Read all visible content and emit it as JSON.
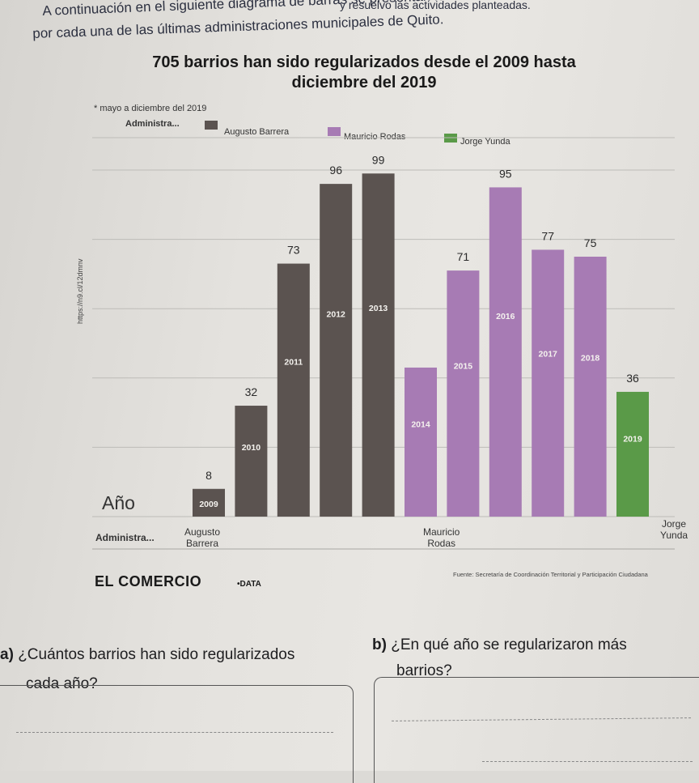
{
  "intro": {
    "top_fragment": "y resuelvo las actividades planteadas.",
    "line1": "A continuación en el siguiente diagrama de barras se presentan los barrios regularizados",
    "line2": "por cada una de las últimas administraciones municipales de Quito."
  },
  "header": {
    "title_line1": "705 barrios han sido regularizados desde el 2009 hasta",
    "title_line2": "diciembre del 2019",
    "subtitle": "* mayo a diciembre del 2019"
  },
  "legend": {
    "label": "Administra...",
    "items": [
      {
        "name": "Augusto Barrera",
        "color": "#5b5350"
      },
      {
        "name": "Mauricio Rodas",
        "color": "#a77bb4"
      },
      {
        "name": "Jorge Yunda",
        "color": "#5a9a48"
      }
    ]
  },
  "chart_data": {
    "type": "bar",
    "title": "705 barrios han sido regularizados desde el 2009 hasta diciembre del 2019",
    "subtitle": "* mayo a diciembre del 2019",
    "xlabel": "Año",
    "ylabel": "",
    "ylim": [
      0,
      100
    ],
    "grid": true,
    "legend_position": "top",
    "categories": [
      "2009",
      "2010",
      "2011",
      "2012",
      "2013",
      "2014",
      "2015",
      "2016",
      "2017",
      "2018",
      "2019"
    ],
    "values": [
      8,
      32,
      73,
      96,
      99,
      43,
      71,
      95,
      77,
      75,
      36
    ],
    "administrations": [
      "Augusto Barrera",
      "Augusto Barrera",
      "Augusto Barrera",
      "Augusto Barrera",
      "Augusto Barrera",
      "Mauricio Rodas",
      "Mauricio Rodas",
      "Mauricio Rodas",
      "Mauricio Rodas",
      "Mauricio Rodas",
      "Jorge Yunda"
    ],
    "value_labels": [
      "8",
      "32",
      "73",
      "96",
      "99",
      "",
      "71",
      "95",
      "77",
      "75",
      "36"
    ],
    "groups": [
      {
        "name": "Augusto Barrera",
        "line1": "Augusto",
        "line2": "Barrera"
      },
      {
        "name": "Mauricio Rodas",
        "line1": "Mauricio",
        "line2": "Rodas"
      },
      {
        "name": "Jorge Yunda",
        "line1": "Jorge",
        "line2": "Yunda"
      }
    ],
    "axis_labels": {
      "year": "Año",
      "admin": "Administra..."
    }
  },
  "footer": {
    "url": "https://n9.cl/12dmnv",
    "brand": "EL COMERCIO",
    "brand_sub": "•DATA",
    "source": "Fuente: Secretaría de Coordinación Territorial y Participación Ciudadana"
  },
  "questions": {
    "a_marker": "a)",
    "a_line1": "¿Cuántos barrios han sido regularizados",
    "a_line2": "cada año?",
    "b_marker": "b)",
    "b_line1": "¿En qué año se regularizaron más",
    "b_line2": "barrios?"
  }
}
